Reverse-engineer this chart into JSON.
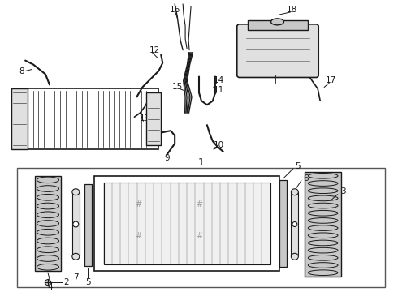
{
  "bg_color": "#ffffff",
  "line_color": "#1a1a1a",
  "gray1": "#e0e0e0",
  "gray2": "#c8c8c8",
  "gray3": "#a0a0a0"
}
